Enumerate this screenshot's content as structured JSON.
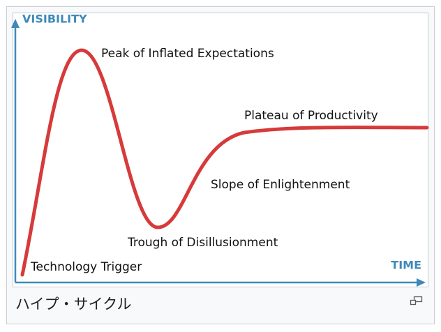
{
  "diagram": {
    "axes": {
      "y": "VISIBILITY",
      "x": "TIME"
    },
    "phases": [
      "Peak of Inflated Expectations",
      "Plateau of Productivity",
      "Slope of Enlightenment",
      "Trough of Disillusionment",
      "Technology Trigger"
    ]
  },
  "caption": "ハイプ・サイクル"
}
